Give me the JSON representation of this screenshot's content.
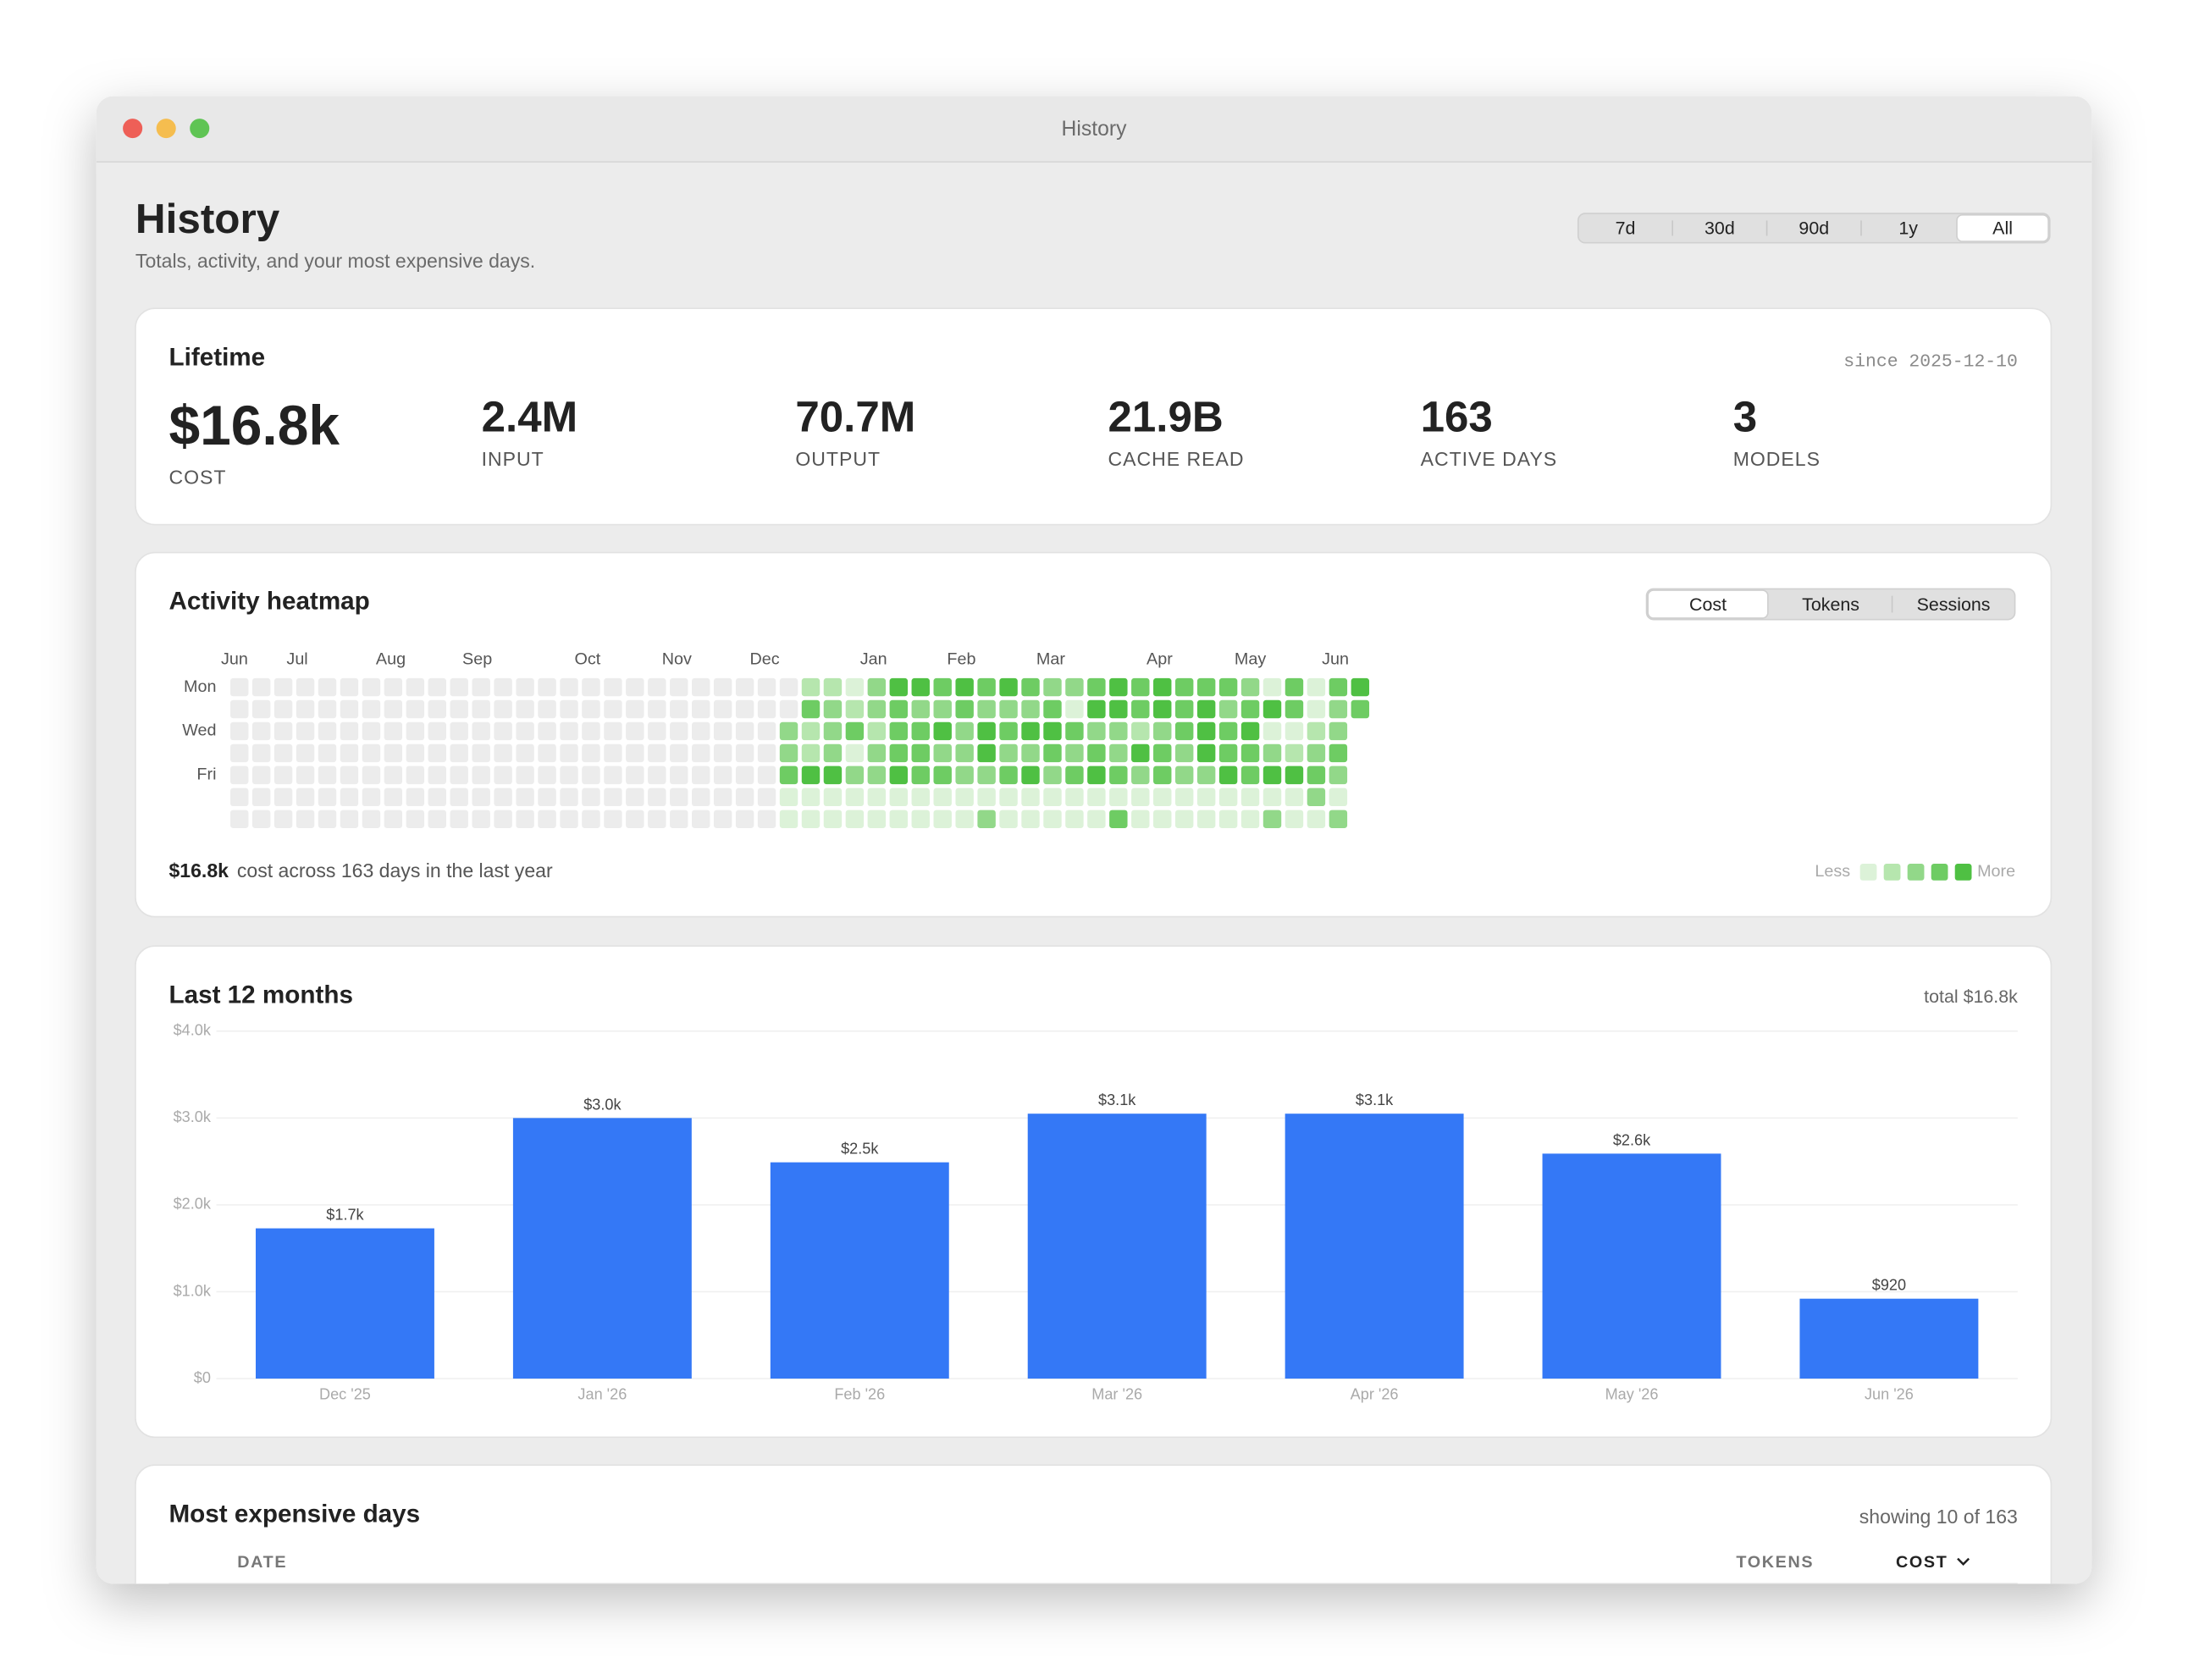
{
  "window": {
    "title": "History"
  },
  "header": {
    "title": "History",
    "subtitle": "Totals, activity, and your most expensive days.",
    "ranges": [
      "7d",
      "30d",
      "90d",
      "1y",
      "All"
    ],
    "selected_range": 4
  },
  "lifetime": {
    "title": "Lifetime",
    "since": "since 2025-12-10",
    "stats": [
      {
        "value": "$16.8k",
        "label": "COST"
      },
      {
        "value": "2.4M",
        "label": "INPUT"
      },
      {
        "value": "70.7M",
        "label": "OUTPUT"
      },
      {
        "value": "21.9B",
        "label": "CACHE READ"
      },
      {
        "value": "163",
        "label": "ACTIVE DAYS"
      },
      {
        "value": "3",
        "label": "MODELS"
      }
    ]
  },
  "heatmap": {
    "title": "Activity heatmap",
    "modes": [
      "Cost",
      "Tokens",
      "Sessions"
    ],
    "selected_mode": 0,
    "months": [
      "Jun",
      "Jul",
      "Aug",
      "Sep",
      "Oct",
      "Nov",
      "Dec",
      "Jan",
      "Feb",
      "Mar",
      "Apr",
      "May",
      "Jun"
    ],
    "days": [
      "Mon",
      "Wed",
      "Fri"
    ],
    "weeks": [
      [
        null,
        null,
        null,
        null,
        null,
        null,
        null
      ],
      [
        null,
        null,
        null,
        null,
        null,
        null,
        null
      ],
      [
        null,
        null,
        null,
        null,
        null,
        null,
        null
      ],
      [
        null,
        null,
        null,
        null,
        null,
        null,
        null
      ],
      [
        null,
        null,
        null,
        null,
        null,
        null,
        null
      ],
      [
        null,
        null,
        null,
        null,
        null,
        null,
        null
      ],
      [
        null,
        null,
        null,
        null,
        null,
        null,
        null
      ],
      [
        null,
        null,
        null,
        null,
        null,
        null,
        null
      ],
      [
        null,
        null,
        null,
        null,
        null,
        null,
        null
      ],
      [
        null,
        null,
        null,
        null,
        null,
        null,
        null
      ],
      [
        null,
        null,
        null,
        null,
        null,
        null,
        null
      ],
      [
        null,
        null,
        null,
        null,
        null,
        null,
        null
      ],
      [
        null,
        null,
        null,
        null,
        null,
        null,
        null
      ],
      [
        null,
        null,
        null,
        null,
        null,
        null,
        null
      ],
      [
        null,
        null,
        null,
        null,
        null,
        null,
        null
      ],
      [
        null,
        null,
        null,
        null,
        null,
        null,
        null
      ],
      [
        null,
        null,
        null,
        null,
        null,
        null,
        null
      ],
      [
        null,
        null,
        null,
        null,
        null,
        null,
        null
      ],
      [
        null,
        null,
        null,
        null,
        null,
        null,
        null
      ],
      [
        null,
        null,
        null,
        null,
        null,
        null,
        null
      ],
      [
        null,
        null,
        null,
        null,
        null,
        null,
        null
      ],
      [
        null,
        null,
        null,
        null,
        null,
        null,
        null
      ],
      [
        null,
        null,
        null,
        null,
        null,
        null,
        null
      ],
      [
        null,
        null,
        null,
        null,
        null,
        null,
        null
      ],
      [
        null,
        null,
        null,
        null,
        null,
        null,
        null
      ],
      [
        null,
        null,
        2,
        2,
        3,
        0,
        0
      ],
      [
        1,
        3,
        1,
        1,
        4,
        0,
        0
      ],
      [
        1,
        2,
        2,
        2,
        4,
        0,
        0
      ],
      [
        0,
        1,
        3,
        0,
        2,
        0,
        0
      ],
      [
        2,
        2,
        1,
        2,
        2,
        0,
        0
      ],
      [
        4,
        3,
        3,
        3,
        4,
        0,
        0
      ],
      [
        4,
        2,
        3,
        3,
        3,
        0,
        0
      ],
      [
        3,
        2,
        4,
        2,
        3,
        0,
        0
      ],
      [
        4,
        3,
        2,
        2,
        2,
        0,
        0
      ],
      [
        3,
        2,
        4,
        4,
        2,
        0,
        2
      ],
      [
        4,
        2,
        3,
        2,
        3,
        0,
        0
      ],
      [
        3,
        2,
        4,
        2,
        4,
        0,
        0
      ],
      [
        2,
        3,
        4,
        3,
        2,
        0,
        0
      ],
      [
        2,
        0,
        3,
        2,
        3,
        0,
        0
      ],
      [
        3,
        4,
        2,
        3,
        4,
        0,
        0
      ],
      [
        4,
        4,
        2,
        2,
        3,
        0,
        3
      ],
      [
        3,
        3,
        1,
        4,
        2,
        0,
        0
      ],
      [
        4,
        4,
        2,
        3,
        3,
        0,
        0
      ],
      [
        3,
        3,
        3,
        2,
        2,
        0,
        0
      ],
      [
        3,
        4,
        4,
        4,
        2,
        0,
        0
      ],
      [
        3,
        2,
        3,
        3,
        4,
        0,
        0
      ],
      [
        2,
        3,
        4,
        3,
        3,
        0,
        0
      ],
      [
        0,
        4,
        0,
        2,
        4,
        0,
        2
      ],
      [
        3,
        3,
        0,
        1,
        4,
        0,
        0
      ],
      [
        0,
        0,
        1,
        2,
        3,
        2,
        0
      ],
      [
        3,
        2,
        2,
        3,
        2,
        0,
        2
      ],
      [
        4,
        3
      ]
    ],
    "level_colors": [
      "#dcf2d8",
      "#b6e6ae",
      "#92d889",
      "#6ecc63",
      "#4fc043"
    ],
    "empty_color": "#ececec",
    "summary_value": "$16.8k",
    "summary_text": "cost across 163 days in the last year",
    "legend_less": "Less",
    "legend_more": "More"
  },
  "chart_data": {
    "type": "bar",
    "title": "Last 12 months",
    "total_label": "total $16.8k",
    "categories": [
      "Dec '25",
      "Jan '26",
      "Feb '26",
      "Mar '26",
      "Apr '26",
      "May '26",
      "Jun '26"
    ],
    "values": [
      1730,
      3000,
      2490,
      3050,
      3050,
      2590,
      920
    ],
    "value_labels": [
      "$1.7k",
      "$3.0k",
      "$2.5k",
      "$3.1k",
      "$3.1k",
      "$2.6k",
      "$920"
    ],
    "color": "#3478f6",
    "ylim": [
      0,
      4000
    ],
    "yticks": [
      {
        "value": 0,
        "label": "$0"
      },
      {
        "value": 1000,
        "label": "$1.0k"
      },
      {
        "value": 2000,
        "label": "$2.0k"
      },
      {
        "value": 3000,
        "label": "$3.0k"
      },
      {
        "value": 4000,
        "label": "$4.0k"
      }
    ],
    "grid": true
  },
  "table": {
    "title": "Most expensive days",
    "count": "showing 10 of 163",
    "columns": [
      "DATE",
      "TOKENS",
      "COST"
    ]
  }
}
